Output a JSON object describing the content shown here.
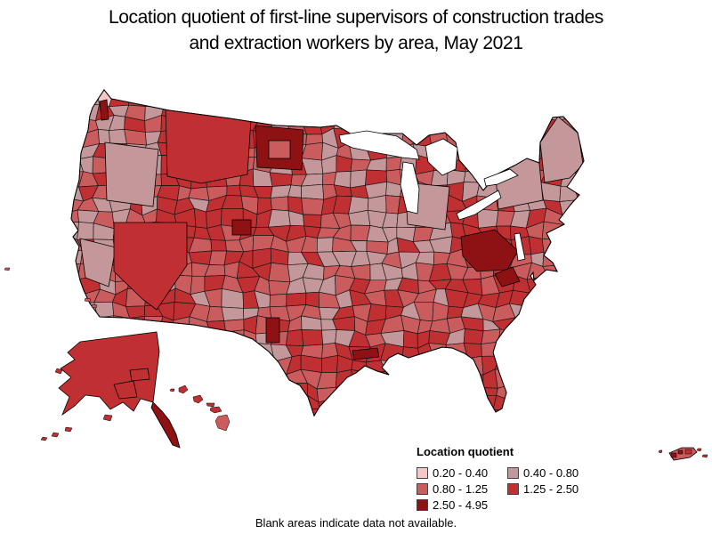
{
  "title": {
    "line1": "Location quotient of first-line supervisors of construction trades",
    "line2": "and extraction workers by area, May 2021"
  },
  "legend": {
    "title": "Location quotient",
    "classes": [
      {
        "label": "0.20 - 0.40",
        "color": "#f7c6c6"
      },
      {
        "label": "0.40 - 0.80",
        "color": "#c4979a"
      },
      {
        "label": "0.80 - 1.25",
        "color": "#ca5c5e"
      },
      {
        "label": "1.25 - 2.50",
        "color": "#c02f31"
      },
      {
        "label": "2.50 - 4.95",
        "color": "#8e1114"
      }
    ]
  },
  "footnote": "Blank areas indicate data not available.",
  "colors": {
    "background": "#ffffff",
    "area_border": "#000000"
  },
  "chart_data": {
    "type": "choropleth",
    "title": "Location quotient of first-line supervisors of construction trades and extraction workers by area, May 2021",
    "legend_title": "Location quotient",
    "classes": [
      {
        "range": "0.20 - 0.40",
        "min": 0.2,
        "max": 0.4,
        "color": "#f7c6c6"
      },
      {
        "range": "0.40 - 0.80",
        "min": 0.4,
        "max": 0.8,
        "color": "#c4979a"
      },
      {
        "range": "0.80 - 1.25",
        "min": 0.8,
        "max": 1.25,
        "color": "#ca5c5e"
      },
      {
        "range": "1.25 - 2.50",
        "min": 1.25,
        "max": 2.5,
        "color": "#c02f31"
      },
      {
        "range": "2.50 - 4.95",
        "min": 2.5,
        "max": 4.95,
        "color": "#8e1114"
      }
    ],
    "value_range": [
      0.2,
      4.95
    ],
    "footnote": "Blank areas indicate data not available.",
    "insets": [
      "Alaska",
      "Hawaii",
      "Puerto Rico"
    ],
    "visual_observations": [
      "Highest class (2.50 - 4.95) visible in western North Dakota, a Colorado mountain area, west Texas, coastal Louisiana, the eastern Kentucky / West Virginia cluster, southeast Alaska panhandle and a Seattle-area sliver",
      "Alaska, Nevada, Montana/Idaho, Texas and much of the South are mostly 1.25 - 2.50",
      "Upper Midwest, interior Northeast, Maine and eastern Oregon show large 0.40 - 0.80 areas",
      "Plains and Pacific coast are largely 0.80 - 1.25 with mixed patches",
      "Great Lakes and areas without data are blank (white)"
    ]
  }
}
